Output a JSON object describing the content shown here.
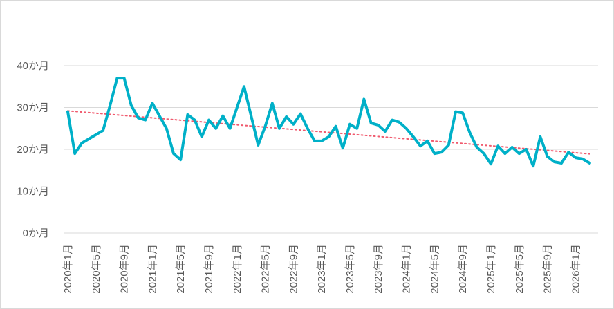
{
  "chart_data": {
    "type": "line",
    "title": "",
    "xlabel": "",
    "ylabel": "",
    "ylim": [
      0,
      40
    ],
    "y_ticks": [
      {
        "value": 0,
        "label": "0か月"
      },
      {
        "value": 10,
        "label": "10か月"
      },
      {
        "value": 20,
        "label": "20か月"
      },
      {
        "value": 30,
        "label": "30か月"
      },
      {
        "value": 40,
        "label": "40か月"
      }
    ],
    "x_tick_labels": [
      {
        "index": 0,
        "label": "2020年1月"
      },
      {
        "index": 4,
        "label": "2020年5月"
      },
      {
        "index": 8,
        "label": "2020年9月"
      },
      {
        "index": 12,
        "label": "2021年1月"
      },
      {
        "index": 16,
        "label": "2021年5月"
      },
      {
        "index": 20,
        "label": "2021年9月"
      },
      {
        "index": 24,
        "label": "2022年1月"
      },
      {
        "index": 28,
        "label": "2022年5月"
      },
      {
        "index": 32,
        "label": "2022年9月"
      },
      {
        "index": 36,
        "label": "2023年1月"
      },
      {
        "index": 40,
        "label": "2023年5月"
      },
      {
        "index": 44,
        "label": "2023年9月"
      },
      {
        "index": 48,
        "label": "2024年1月"
      },
      {
        "index": 52,
        "label": "2024年5月"
      },
      {
        "index": 56,
        "label": "2024年9月"
      },
      {
        "index": 60,
        "label": "2025年1月"
      },
      {
        "index": 64,
        "label": "2025年5月"
      },
      {
        "index": 68,
        "label": "2025年9月"
      },
      {
        "index": 72,
        "label": "2026年1月"
      }
    ],
    "grid": true,
    "legend": "none",
    "series": [
      {
        "values": [
          29,
          19,
          21.5,
          22.5,
          23.5,
          24.5,
          30.5,
          37,
          37,
          30.5,
          27.5,
          27,
          31,
          28,
          25,
          19,
          17.5,
          28.3,
          27,
          23,
          27,
          25,
          28,
          25,
          30,
          35,
          28,
          21,
          25.5,
          31,
          25,
          27.8,
          26,
          28.5,
          25,
          22,
          22,
          23,
          25.5,
          20.3,
          26,
          25,
          32,
          26.3,
          25.8,
          24.3,
          27,
          26.5,
          25,
          23,
          20.8,
          22,
          19,
          19.3,
          21,
          29,
          28.7,
          24,
          20.5,
          19,
          16.5,
          20.8,
          19,
          20.5,
          19,
          20,
          16,
          23,
          18.3,
          17,
          16.7,
          19.3,
          18,
          17.7,
          16.7
        ],
        "color": "#00b0c8"
      }
    ],
    "trendline": {
      "type": "linear",
      "start": 29.2,
      "end": 18.9,
      "color": "#f05a6e",
      "style": "dotted"
    }
  }
}
